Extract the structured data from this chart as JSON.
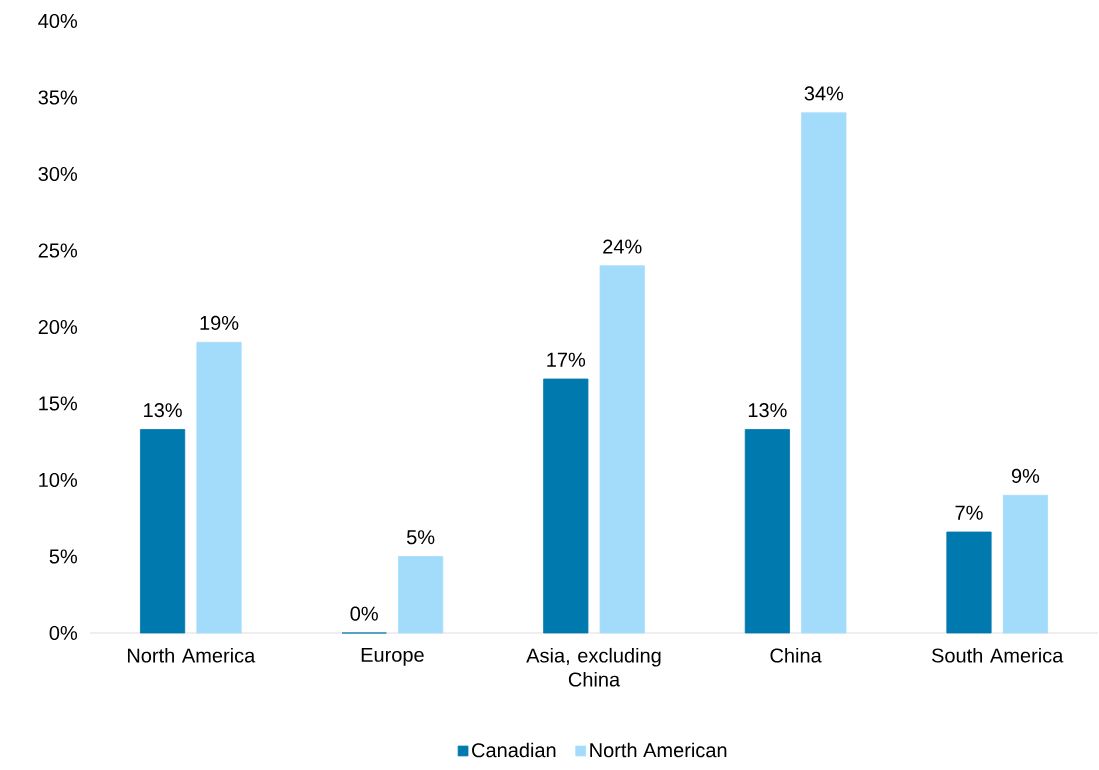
{
  "chart_data": {
    "type": "bar",
    "categories": [
      "North America",
      "Europe",
      "Asia, excluding China",
      "China",
      "South America"
    ],
    "series": [
      {
        "name": "Canadian",
        "color": "#0079ae",
        "values": [
          13.3,
          0,
          16.6,
          13.3,
          6.6
        ],
        "value_labels": [
          "13%",
          "0%",
          "17%",
          "13%",
          "7%"
        ]
      },
      {
        "name": "North American",
        "color": "#a3dcfb",
        "values": [
          19,
          5,
          24,
          34,
          9
        ],
        "value_labels": [
          "19%",
          "5%",
          "24%",
          "34%",
          "9%"
        ]
      }
    ],
    "ylim": [
      0,
      40
    ],
    "yticks": [
      {
        "value": 0,
        "label": "0%"
      },
      {
        "value": 5,
        "label": "5%"
      },
      {
        "value": 10,
        "label": "10%"
      },
      {
        "value": 15,
        "label": "15%"
      },
      {
        "value": 20,
        "label": "20%"
      },
      {
        "value": 25,
        "label": "25%"
      },
      {
        "value": 30,
        "label": "30%"
      },
      {
        "value": 35,
        "label": "35%"
      },
      {
        "value": 40,
        "label": "40%"
      }
    ],
    "legend": "bottom"
  }
}
